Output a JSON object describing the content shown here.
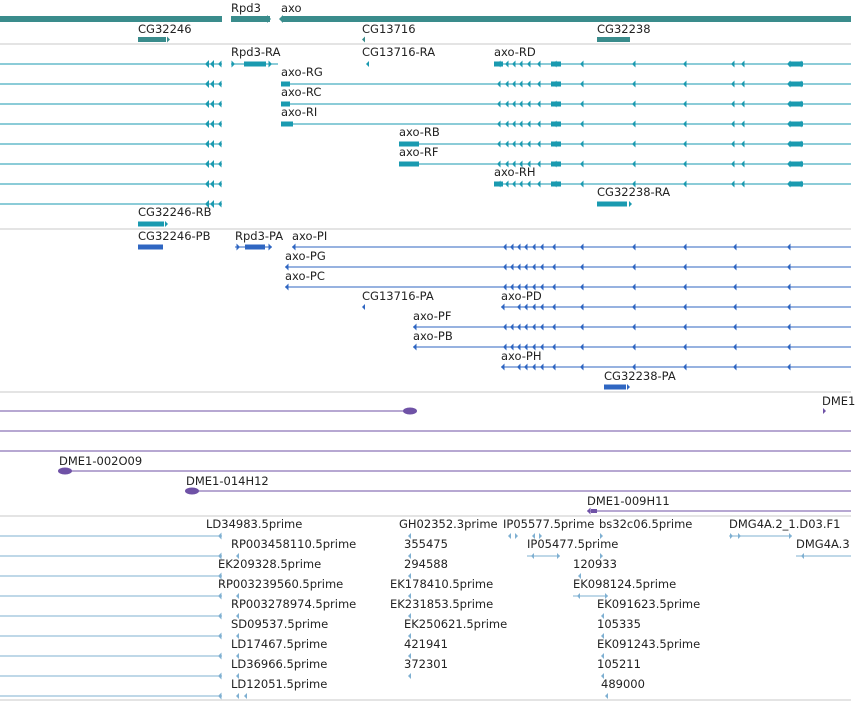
{
  "colors": {
    "gene": "#3a8c8c",
    "mrna": "#1a9ab0",
    "protein": "#2f66c2",
    "clone": "#6f52a6",
    "est": "#7fb0d2",
    "divider": "#c8c8c8",
    "text": "#222222"
  },
  "genes": [
    {
      "label": "Rpd3"
    },
    {
      "label": "axo"
    },
    {
      "label": "CG32246"
    },
    {
      "label": "CG13716"
    },
    {
      "label": "CG32238"
    }
  ],
  "mrna_labels": [
    {
      "label": "Rpd3-RA"
    },
    {
      "label": "CG13716-RA"
    },
    {
      "label": "axo-RD"
    },
    {
      "label": "axo-RG"
    },
    {
      "label": "axo-RC"
    },
    {
      "label": "axo-RI"
    },
    {
      "label": "axo-RB"
    },
    {
      "label": "axo-RF"
    },
    {
      "label": "axo-RH"
    },
    {
      "label": "CG32238-RA"
    },
    {
      "label": "CG32246-RB"
    }
  ],
  "protein_labels": [
    {
      "label": "CG32246-PB"
    },
    {
      "label": "Rpd3-PA"
    },
    {
      "label": "axo-PI"
    },
    {
      "label": "axo-PG"
    },
    {
      "label": "axo-PC"
    },
    {
      "label": "CG13716-PA"
    },
    {
      "label": "axo-PD"
    },
    {
      "label": "axo-PF"
    },
    {
      "label": "axo-PB"
    },
    {
      "label": "axo-PH"
    },
    {
      "label": "CG32238-PA"
    }
  ],
  "clone_labels": [
    {
      "label": "DME1"
    },
    {
      "label": "DME1-002O09"
    },
    {
      "label": "DME1-014H12"
    },
    {
      "label": "DME1-009H11"
    }
  ],
  "est_labels": [
    {
      "label": "LD34983.5prime"
    },
    {
      "label": "GH02352.3prime"
    },
    {
      "label": "IP05577.5prime"
    },
    {
      "label": "bs32c06.5prime"
    },
    {
      "label": "DMG4A.2_1.D03.F1"
    },
    {
      "label": "RP003458110.5prime"
    },
    {
      "label": "355475"
    },
    {
      "label": "IP05477.5prime"
    },
    {
      "label": "DMG4A.3"
    },
    {
      "label": "EK209328.5prime"
    },
    {
      "label": "294588"
    },
    {
      "label": "120933"
    },
    {
      "label": "RP003239560.5prime"
    },
    {
      "label": "EK178410.5prime"
    },
    {
      "label": "EK098124.5prime"
    },
    {
      "label": "RP003278974.5prime"
    },
    {
      "label": "EK231853.5prime"
    },
    {
      "label": "EK091623.5prime"
    },
    {
      "label": "SD09537.5prime"
    },
    {
      "label": "EK250621.5prime"
    },
    {
      "label": "105335"
    },
    {
      "label": "LD17467.5prime"
    },
    {
      "label": "421941"
    },
    {
      "label": "EK091243.5prime"
    },
    {
      "label": "LD36966.5prime"
    },
    {
      "label": "372301"
    },
    {
      "label": "105211"
    },
    {
      "label": "LD12051.5prime"
    },
    {
      "label": "489000"
    }
  ]
}
